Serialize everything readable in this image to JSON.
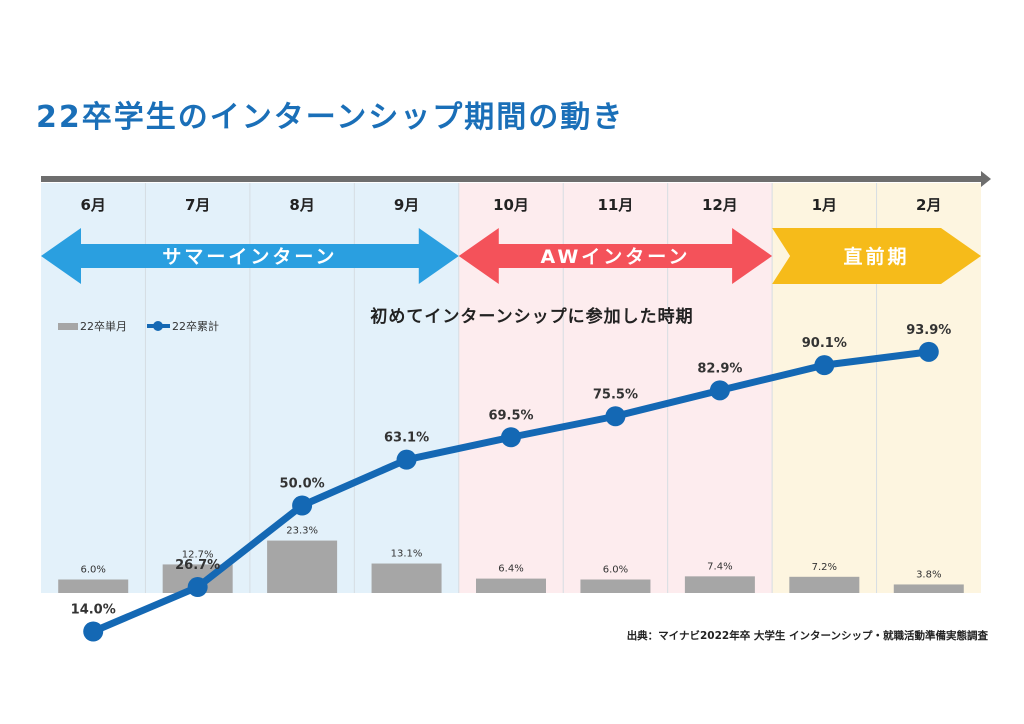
{
  "page": {
    "title": "22卒学生のインターンシップ期間の動き",
    "source": "出典：マイナビ2022年卒 大学生 インターンシップ・就職活動準備実態調査"
  },
  "phases": [
    {
      "label": "サマーインターン",
      "color": "#2a9fe0",
      "bg": "#e3f1fa",
      "months": [
        0,
        4
      ]
    },
    {
      "label": "AWインターン",
      "color": "#f4525a",
      "bg": "#fdecee",
      "months": [
        4,
        7
      ]
    },
    {
      "label": "直前期",
      "color": "#f6bb1a",
      "bg": "#fdf5e0",
      "months": [
        7,
        9
      ]
    }
  ],
  "legend": {
    "bar": "22卒単月",
    "line": "22卒累計"
  },
  "colors": {
    "bar": "#a6a6a6",
    "line": "#1468b4",
    "arrow": "#6e6e6e",
    "title": "#1a6fb8"
  },
  "chart_data": {
    "type": "bar+line",
    "title": "初めてインターンシップに参加した時期",
    "categories": [
      "6月",
      "7月",
      "8月",
      "9月",
      "10月",
      "11月",
      "12月",
      "1月",
      "2月"
    ],
    "series": [
      {
        "name": "22卒単月",
        "type": "bar",
        "values": [
          6.0,
          12.7,
          23.3,
          13.1,
          6.4,
          6.0,
          7.4,
          7.2,
          3.8
        ],
        "labels": [
          "6.0%",
          "12.7%",
          "23.3%",
          "13.1%",
          "6.4%",
          "6.0%",
          "7.4%",
          "7.2%",
          "3.8%"
        ]
      },
      {
        "name": "22卒累計",
        "type": "line",
        "values": [
          14.0,
          26.7,
          50.0,
          63.1,
          69.5,
          75.5,
          82.9,
          90.1,
          93.9
        ],
        "labels": [
          "14.0%",
          "26.7%",
          "50.0%",
          "63.1%",
          "69.5%",
          "75.5%",
          "82.9%",
          "90.1%",
          "93.9%"
        ]
      }
    ],
    "ylim": [
      0,
      100
    ],
    "grid": false,
    "legend_position": "top-left"
  }
}
